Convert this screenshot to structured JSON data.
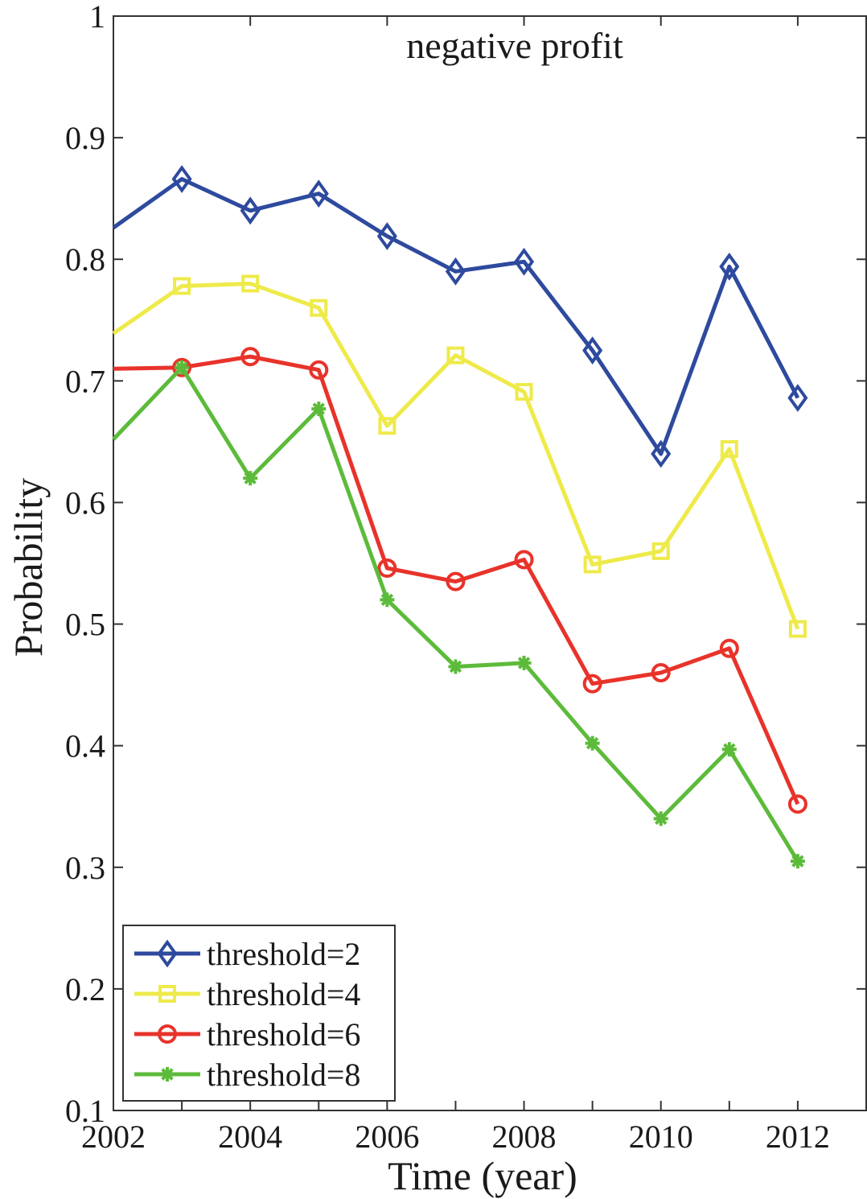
{
  "chart_data": {
    "type": "line",
    "title": "negative profit",
    "xlabel": "Time (year)",
    "ylabel": "Probability",
    "xlim": [
      2002,
      2013
    ],
    "ylim": [
      0.1,
      1.0
    ],
    "x_ticks": [
      "2002",
      "2004",
      "2006",
      "2008",
      "2010",
      "2012"
    ],
    "y_ticks": [
      "0.1",
      "0.2",
      "0.3",
      "0.4",
      "0.5",
      "0.6",
      "0.7",
      "0.8",
      "0.9",
      "1"
    ],
    "grid": false,
    "legend_position": "bottom-left",
    "x": [
      2002,
      2003,
      2004,
      2005,
      2006,
      2007,
      2008,
      2009,
      2010,
      2011,
      2012
    ],
    "series": [
      {
        "name": "threshold=2",
        "color": "#2e4a9e",
        "marker": "diamond",
        "values": [
          0.826,
          0.866,
          0.84,
          0.854,
          0.819,
          0.79,
          0.798,
          0.725,
          0.64,
          0.794,
          0.686
        ]
      },
      {
        "name": "threshold=4",
        "color": "#eeea4a",
        "marker": "square",
        "values": [
          0.739,
          0.778,
          0.78,
          0.76,
          0.663,
          0.721,
          0.691,
          0.549,
          0.56,
          0.644,
          0.496
        ]
      },
      {
        "name": "threshold=6",
        "color": "#e8332a",
        "marker": "circle",
        "values": [
          0.71,
          0.711,
          0.72,
          0.709,
          0.546,
          0.535,
          0.553,
          0.451,
          0.46,
          0.48,
          0.352
        ]
      },
      {
        "name": "threshold=8",
        "color": "#5cbb3a",
        "marker": "asterisk",
        "values": [
          0.652,
          0.711,
          0.62,
          0.677,
          0.52,
          0.465,
          0.468,
          0.402,
          0.34,
          0.397,
          0.305
        ]
      }
    ]
  }
}
